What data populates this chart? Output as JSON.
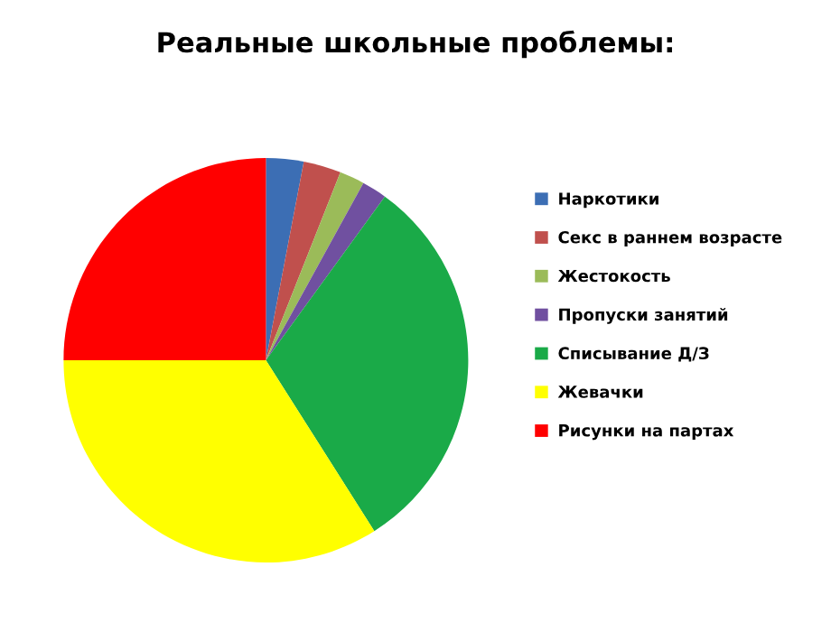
{
  "chart_data": {
    "type": "pie",
    "title": "Реальные школьные проблемы:",
    "categories": [
      "Наркотики",
      "Секс в раннем возрасте",
      "Жестокость",
      "Пропуски занятий",
      "Списывание Д/З",
      "Жевачки",
      "Рисунки на партах"
    ],
    "values": [
      3,
      3,
      2,
      2,
      31,
      34,
      25
    ],
    "colors": [
      "#3c6eb4",
      "#c0504d",
      "#9bbb59",
      "#7050a0",
      "#1aaa48",
      "#ffff00",
      "#ff0000"
    ],
    "legend": "right"
  }
}
